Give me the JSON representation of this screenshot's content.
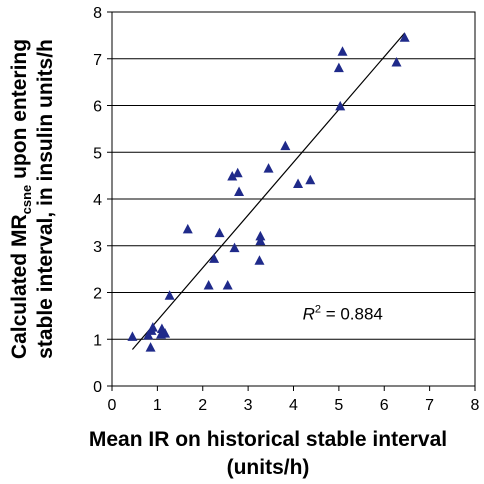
{
  "chart_data": {
    "type": "scatter",
    "xlabel_line1": "Mean IR on historical stable interval",
    "xlabel_line2": "(units/h)",
    "ylabel_line1_part1": "Calculated MR",
    "ylabel_line1_sub": "csne",
    "ylabel_line1_part2": " upon entering",
    "ylabel_line2": "stable interval, in insulin units/h",
    "xlim": [
      0,
      8
    ],
    "ylim": [
      0,
      8
    ],
    "x_ticks": [
      "0",
      "1",
      "2",
      "3",
      "4",
      "5",
      "6",
      "7",
      "8"
    ],
    "y_ticks": [
      "0",
      "1",
      "2",
      "3",
      "4",
      "5",
      "6",
      "7",
      "8"
    ],
    "grid": "horizontal",
    "marker": "triangle",
    "marker_color": "#1f2a8a",
    "points": [
      {
        "x": 0.45,
        "y": 1.05
      },
      {
        "x": 0.8,
        "y": 1.08
      },
      {
        "x": 0.87,
        "y": 1.18
      },
      {
        "x": 0.9,
        "y": 1.25
      },
      {
        "x": 0.85,
        "y": 0.82
      },
      {
        "x": 1.08,
        "y": 1.1
      },
      {
        "x": 1.1,
        "y": 1.22
      },
      {
        "x": 1.17,
        "y": 1.12
      },
      {
        "x": 1.27,
        "y": 1.93
      },
      {
        "x": 1.67,
        "y": 3.35
      },
      {
        "x": 2.13,
        "y": 2.15
      },
      {
        "x": 2.25,
        "y": 2.72
      },
      {
        "x": 2.37,
        "y": 3.27
      },
      {
        "x": 2.55,
        "y": 2.15
      },
      {
        "x": 2.65,
        "y": 4.48
      },
      {
        "x": 2.7,
        "y": 2.95
      },
      {
        "x": 2.77,
        "y": 4.55
      },
      {
        "x": 2.8,
        "y": 4.15
      },
      {
        "x": 3.25,
        "y": 2.68
      },
      {
        "x": 3.27,
        "y": 3.2
      },
      {
        "x": 3.27,
        "y": 3.1
      },
      {
        "x": 3.45,
        "y": 4.65
      },
      {
        "x": 3.82,
        "y": 5.13
      },
      {
        "x": 4.1,
        "y": 4.32
      },
      {
        "x": 4.37,
        "y": 4.4
      },
      {
        "x": 5.0,
        "y": 6.8
      },
      {
        "x": 5.03,
        "y": 5.98
      },
      {
        "x": 5.08,
        "y": 7.15
      },
      {
        "x": 6.27,
        "y": 6.92
      },
      {
        "x": 6.45,
        "y": 7.45
      }
    ],
    "trendline": {
      "x": [
        0.45,
        6.45
      ],
      "y": [
        0.78,
        7.55
      ]
    },
    "annotation": {
      "r_letter": "R",
      "superscript": "2",
      "value_text": " = 0.884",
      "x": 4.2,
      "y": 1.55
    }
  }
}
